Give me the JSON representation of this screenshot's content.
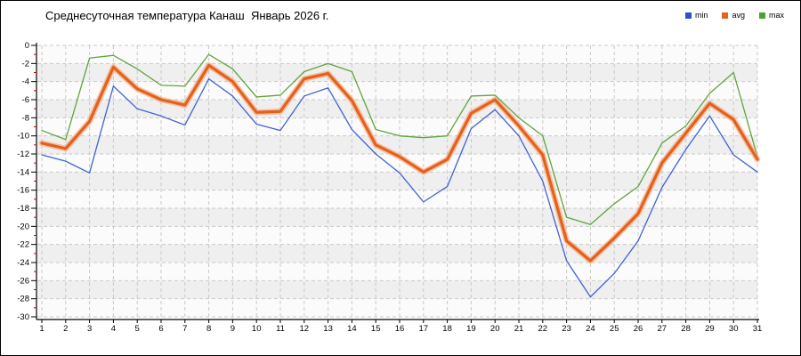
{
  "title": "Среднесуточная температура Канаш  Январь 2026 г.",
  "legend": {
    "items": [
      {
        "label": "min",
        "color": "#2f4fd0"
      },
      {
        "label": "avg",
        "color": "#e8611c"
      },
      {
        "label": "max",
        "color": "#4da32f"
      }
    ]
  },
  "chart_data": {
    "type": "line",
    "title": "Среднесуточная температура Канаш  Январь 2026 г.",
    "xlabel": "",
    "ylabel": "",
    "x": [
      1,
      2,
      3,
      4,
      5,
      6,
      7,
      8,
      9,
      10,
      11,
      12,
      13,
      14,
      15,
      16,
      17,
      18,
      19,
      20,
      21,
      22,
      23,
      24,
      25,
      26,
      27,
      28,
      29,
      30,
      31
    ],
    "ylim": [
      -30,
      0
    ],
    "ytick_step": 2,
    "y_minor_tick_color": "#cc0000",
    "grid": "dashed",
    "legend_position": "top-right",
    "series": [
      {
        "name": "min",
        "color": "#3f63d2",
        "width": 1.3,
        "values": [
          -12.1,
          -12.8,
          -14.1,
          -4.5,
          -7.0,
          -7.8,
          -8.8,
          -3.7,
          -5.6,
          -8.7,
          -9.4,
          -5.6,
          -4.7,
          -9.3,
          -12.0,
          -14.1,
          -17.3,
          -15.6,
          -9.2,
          -7.1,
          -10.0,
          -15.0,
          -23.8,
          -27.8,
          -25.2,
          -21.6,
          -15.7,
          -11.5,
          -7.8,
          -12.1,
          -14.0
        ]
      },
      {
        "name": "avg",
        "color": "#e4601d",
        "halo_color": "#f6ad80",
        "width": 3.2,
        "values": [
          -10.8,
          -11.4,
          -8.4,
          -2.4,
          -4.8,
          -6.0,
          -6.6,
          -2.2,
          -4.0,
          -7.4,
          -7.3,
          -3.7,
          -3.1,
          -6.1,
          -11.0,
          -12.3,
          -14.0,
          -12.6,
          -7.5,
          -6.0,
          -8.9,
          -12.1,
          -21.6,
          -23.8,
          -21.3,
          -18.6,
          -13.0,
          -9.7,
          -6.4,
          -8.2,
          -12.6
        ]
      },
      {
        "name": "max",
        "color": "#5fa53c",
        "width": 1.3,
        "values": [
          -9.4,
          -10.4,
          -1.4,
          -1.1,
          -2.6,
          -4.4,
          -4.5,
          -1.0,
          -2.6,
          -5.7,
          -5.5,
          -2.9,
          -2.0,
          -2.9,
          -9.3,
          -10.0,
          -10.2,
          -10.0,
          -5.6,
          -5.5,
          -8.0,
          -10.0,
          -19.0,
          -19.8,
          -17.5,
          -15.6,
          -10.8,
          -8.9,
          -5.3,
          -3.0,
          -12.3
        ]
      }
    ]
  }
}
